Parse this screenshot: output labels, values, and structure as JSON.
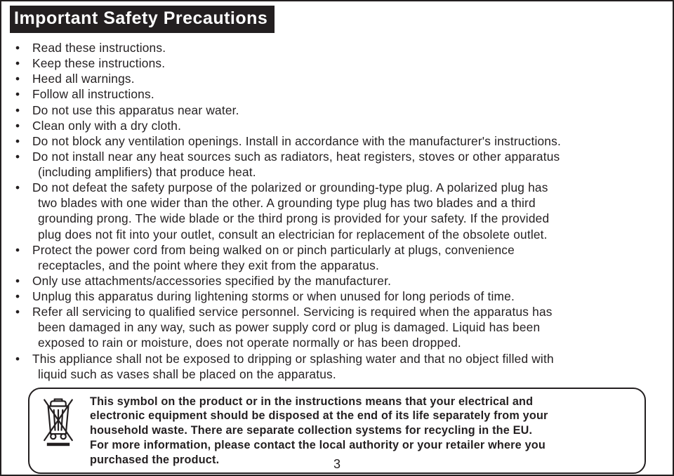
{
  "title": "Important Safety Precautions",
  "bullets": [
    {
      "first": "Read these instructions."
    },
    {
      "first": "Keep these instructions."
    },
    {
      "first": "Heed all warnings."
    },
    {
      "first": "Follow all instructions."
    },
    {
      "first": "Do not use this apparatus near water."
    },
    {
      "first": "Clean only with a dry cloth."
    },
    {
      "first": "Do not block any ventilation openings. Install in accordance with the manufacturer's instructions."
    },
    {
      "first": "Do not install near any heat sources such as radiators, heat registers, stoves or other apparatus",
      "cont": [
        "(including amplifiers) that produce heat."
      ]
    },
    {
      "first": "Do not defeat the safety purpose of the polarized or grounding-type plug. A polarized plug has",
      "cont": [
        "two blades with one wider than the other. A grounding type plug has two blades and a third",
        "grounding prong. The wide blade or the third prong is provided for your safety. If the provided",
        "plug does not fit into your outlet, consult an electrician for replacement of the obsolete outlet."
      ]
    },
    {
      "first": "Protect the power cord from being walked on or pinch particularly at plugs, convenience",
      "cont": [
        "receptacles, and the point where they exit from the apparatus."
      ]
    },
    {
      "first": "Only use attachments/accessories specified by the manufacturer."
    },
    {
      "first": "Unplug this apparatus during lightening storms or when unused for long periods of time."
    },
    {
      "first": "Refer all servicing to qualified service personnel. Servicing is required when the apparatus has",
      "cont": [
        "been damaged in any way, such as power supply cord or plug is damaged. Liquid has been",
        "exposed to rain or moisture, does not operate normally or has been dropped."
      ]
    },
    {
      "first": "This appliance shall not be exposed to dripping or splashing water and that no object filled with",
      "cont": [
        "liquid such as vases shall be placed on the apparatus."
      ]
    }
  ],
  "weee": {
    "line1": "This symbol on the product or in the instructions means that your electrical and",
    "line2": "electronic equipment should be disposed at the end of its life separately from your",
    "line3": "household waste. There are separate collection systems for recycling in the EU.",
    "line4": "For more information, please contact the local authority or your retailer where you",
    "line5": "purchased the product."
  },
  "page_number": "3",
  "colors": {
    "ink": "#231f20",
    "bg": "#ffffff"
  }
}
